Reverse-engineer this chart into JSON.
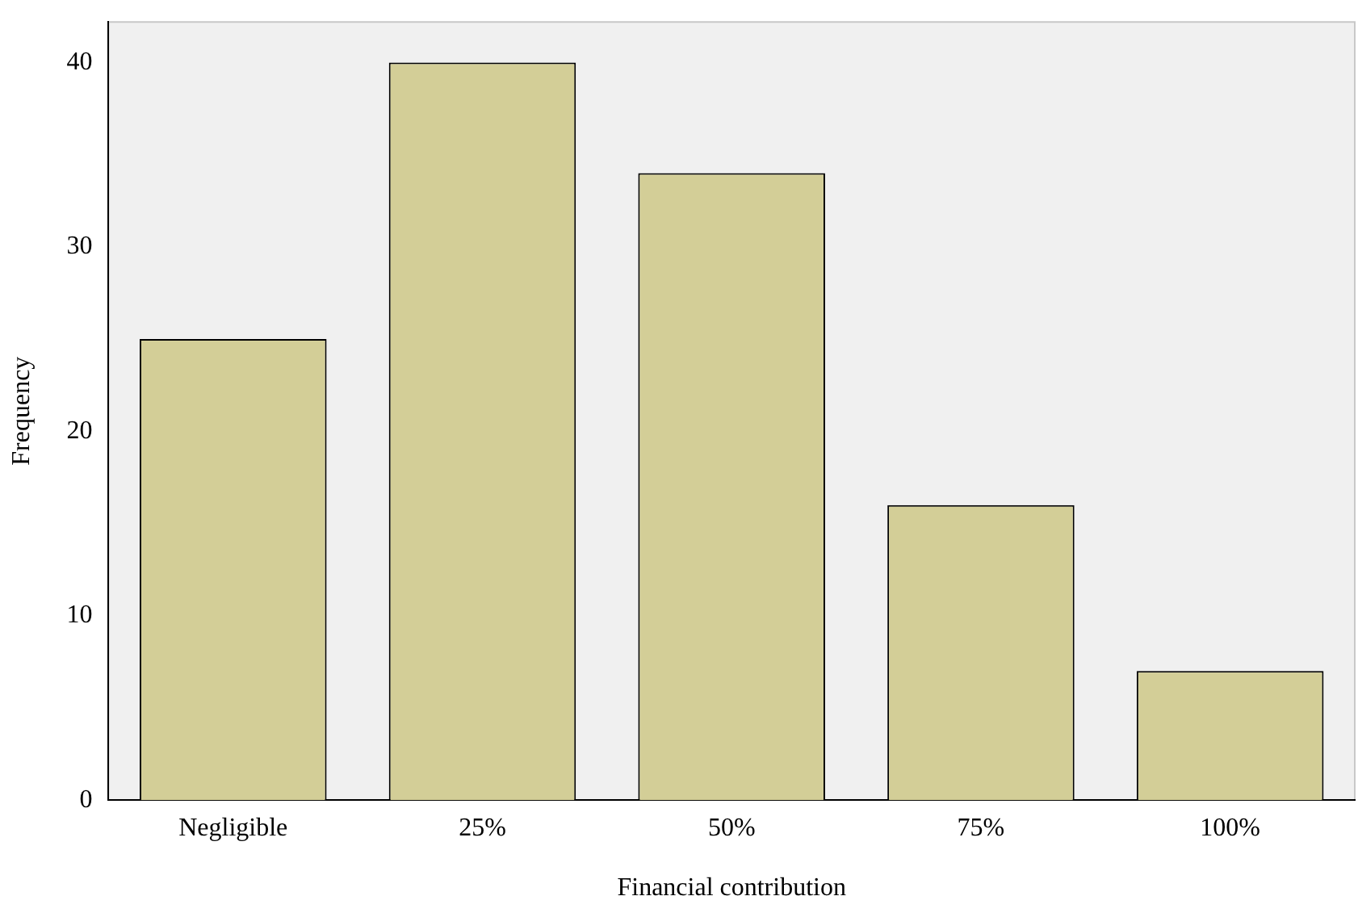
{
  "chart_data": {
    "type": "bar",
    "xlabel": "Financial contribution",
    "ylabel": "Frequency",
    "categories": [
      "Negligible",
      "25%",
      "50%",
      "75%",
      "100%"
    ],
    "values": [
      25,
      40,
      34,
      16,
      7
    ],
    "color": "#d3ce97",
    "ylim": [
      0,
      42.2
    ],
    "yticks": [
      0,
      10,
      20,
      30,
      40
    ],
    "grid": false,
    "legend": false
  }
}
